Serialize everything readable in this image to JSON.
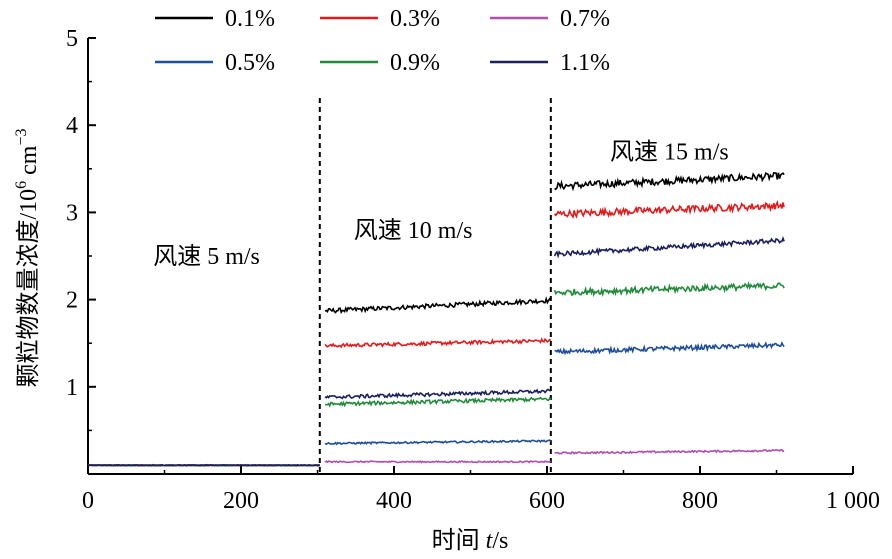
{
  "chart_data": {
    "type": "line",
    "title": "",
    "xlabel_prefix": "时间 ",
    "xlabel_var": "t",
    "xlabel_unit": "/s",
    "ylabel_main": "颗粒物数量浓度/10",
    "ylabel_exp1": "6",
    "ylabel_mid": " cm",
    "ylabel_exp2": "−3",
    "xlim": [
      0,
      1000
    ],
    "ylim": [
      0,
      5
    ],
    "x_ticks": [
      0,
      200,
      400,
      600,
      800,
      1000
    ],
    "x_tick_labels": [
      "0",
      "200",
      "400",
      "600",
      "800",
      "1 000"
    ],
    "y_ticks": [
      1,
      2,
      3,
      4,
      5
    ],
    "y_tick_labels": [
      "1",
      "2",
      "3",
      "4",
      "5"
    ],
    "grid": false,
    "legend_position": "top",
    "dividers_x": [
      303,
      605
    ],
    "annotations": [
      {
        "text": "风速 5 m/s",
        "x": 155,
        "y": 2.5
      },
      {
        "text": "风速 10 m/s",
        "x": 425,
        "y": 2.8
      },
      {
        "text": "风速 15 m/s",
        "x": 760,
        "y": 3.7
      }
    ],
    "segments": [
      {
        "x0": 0,
        "x1": 303
      },
      {
        "x0": 310,
        "x1": 605
      },
      {
        "x0": 610,
        "x1": 910
      }
    ],
    "series": [
      {
        "name": "0.1%",
        "color": "#000000",
        "levels": [
          0.1,
          1.87,
          3.3
        ],
        "trend": [
          0.0,
          0.12,
          0.12
        ],
        "noise": [
          0.006,
          0.025,
          0.04
        ]
      },
      {
        "name": "0.3%",
        "color": "#e31a1c",
        "levels": [
          0.1,
          1.47,
          2.98
        ],
        "trend": [
          0.0,
          0.06,
          0.1
        ],
        "noise": [
          0.006,
          0.02,
          0.04
        ]
      },
      {
        "name": "0.7%",
        "color": "#b04fb0",
        "levels": [
          0.1,
          0.14,
          0.24
        ],
        "trend": [
          0.0,
          0.0,
          0.03
        ],
        "noise": [
          0.004,
          0.008,
          0.01
        ]
      },
      {
        "name": "0.5%",
        "color": "#1f4e9c",
        "levels": [
          0.1,
          0.35,
          1.4
        ],
        "trend": [
          0.0,
          0.03,
          0.08
        ],
        "noise": [
          0.004,
          0.01,
          0.025
        ]
      },
      {
        "name": "0.9%",
        "color": "#228b3b",
        "levels": [
          0.1,
          0.8,
          2.08
        ],
        "trend": [
          0.0,
          0.06,
          0.08
        ],
        "noise": [
          0.004,
          0.02,
          0.035
        ]
      },
      {
        "name": "1.1%",
        "color": "#1b1f5e",
        "levels": [
          0.1,
          0.88,
          2.52
        ],
        "trend": [
          0.0,
          0.07,
          0.16
        ],
        "noise": [
          0.004,
          0.02,
          0.025
        ]
      }
    ]
  }
}
